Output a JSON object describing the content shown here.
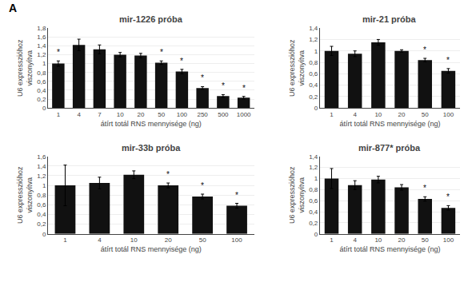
{
  "panel_label": "A",
  "chart_data": [
    {
      "type": "bar",
      "title": "mir-1226 próba",
      "categories": [
        "1",
        "4",
        "7",
        "10",
        "20",
        "50",
        "100",
        "250",
        "500",
        "1000"
      ],
      "values": [
        1.0,
        1.42,
        1.32,
        1.2,
        1.18,
        1.02,
        0.82,
        0.45,
        0.27,
        0.23
      ],
      "errors": [
        0.06,
        0.13,
        0.1,
        0.05,
        0.05,
        0.04,
        0.05,
        0.03,
        0.03,
        0.03
      ],
      "annotations": [
        {
          "category": "1",
          "text": "*"
        },
        {
          "category": "50",
          "text": "*"
        },
        {
          "category": "100",
          "text": "*"
        },
        {
          "category": "250",
          "text": "*"
        },
        {
          "category": "500",
          "text": "*"
        },
        {
          "category": "1000",
          "text": "*"
        }
      ],
      "color": "#111111",
      "ylim": [
        0,
        1.8
      ],
      "yticks": [
        0,
        {
          "value": 0.2,
          "label": "0,2"
        },
        {
          "value": 0.4,
          "label": "0,4"
        },
        {
          "value": 0.6,
          "label": "0,6"
        },
        {
          "value": 0.8,
          "label": "0,8"
        },
        1,
        {
          "value": 1.2,
          "label": "1,2"
        },
        {
          "value": 1.4,
          "label": "1,4"
        },
        {
          "value": 1.6,
          "label": "1,6"
        },
        {
          "value": 1.8,
          "label": "1,8"
        }
      ],
      "ylabel": "U6 expresszióhoz\nviszonyítva",
      "xlabel": "átírt totál RNS mennyisége (ng)",
      "grid": true
    },
    {
      "type": "bar",
      "title": "mir-21 próba",
      "categories": [
        "1",
        "4",
        "10",
        "20",
        "50",
        "100"
      ],
      "values": [
        1.0,
        0.95,
        1.15,
        1.0,
        0.84,
        0.65
      ],
      "errors": [
        0.08,
        0.05,
        0.05,
        0.02,
        0.03,
        0.04
      ],
      "annotations": [
        {
          "category": "50",
          "text": "*"
        },
        {
          "category": "100",
          "text": "*"
        }
      ],
      "color": "#111111",
      "ylim": [
        0,
        1.4
      ],
      "yticks": [
        0,
        {
          "value": 0.2,
          "label": "0,2"
        },
        {
          "value": 0.4,
          "label": "0,4"
        },
        {
          "value": 0.6,
          "label": "0,6"
        },
        {
          "value": 0.8,
          "label": "0,8"
        },
        1,
        {
          "value": 1.2,
          "label": "1,2"
        },
        {
          "value": 1.4,
          "label": "1,4"
        }
      ],
      "ylabel": "U6 expresszióhoz\nviszonyítva",
      "xlabel": "átírt totál RNS mennyisége (ng)",
      "grid": true
    },
    {
      "type": "bar",
      "title": "mir-33b próba",
      "categories": [
        "1",
        "4",
        "10",
        "20",
        "50",
        "100"
      ],
      "values": [
        1.0,
        1.05,
        1.22,
        1.0,
        0.77,
        0.58
      ],
      "errors": [
        0.42,
        0.12,
        0.08,
        0.05,
        0.05,
        0.05
      ],
      "annotations": [
        {
          "category": "20",
          "text": "*"
        },
        {
          "category": "50",
          "text": "*"
        },
        {
          "category": "100",
          "text": "*"
        }
      ],
      "color": "#111111",
      "ylim": [
        0,
        1.6
      ],
      "yticks": [
        0,
        {
          "value": 0.2,
          "label": "0,2"
        },
        {
          "value": 0.4,
          "label": "0,4"
        },
        {
          "value": 0.6,
          "label": "0,6"
        },
        {
          "value": 0.8,
          "label": "0,8"
        },
        1,
        {
          "value": 1.2,
          "label": "1,2"
        },
        {
          "value": 1.4,
          "label": "1,4"
        },
        {
          "value": 1.6,
          "label": "1,6"
        }
      ],
      "ylabel": "U6 expresszióhoz\nviszonyítva",
      "xlabel": "átírt totál RNS mennyisége (ng)",
      "grid": true
    },
    {
      "type": "bar",
      "title": "mir-877* próba",
      "categories": [
        "1",
        "4",
        "10",
        "20",
        "50",
        "100"
      ],
      "values": [
        1.0,
        0.88,
        0.98,
        0.84,
        0.63,
        0.47
      ],
      "errors": [
        0.18,
        0.08,
        0.06,
        0.05,
        0.04,
        0.04
      ],
      "annotations": [
        {
          "category": "50",
          "text": "*"
        },
        {
          "category": "100",
          "text": "*"
        }
      ],
      "color": "#111111",
      "ylim": [
        0,
        1.4
      ],
      "yticks": [
        0,
        {
          "value": 0.2,
          "label": "0,2"
        },
        {
          "value": 0.4,
          "label": "0,4"
        },
        {
          "value": 0.6,
          "label": "0,6"
        },
        {
          "value": 0.8,
          "label": "0,8"
        },
        1,
        {
          "value": 1.2,
          "label": "1,2"
        },
        {
          "value": 1.4,
          "label": "1,4"
        }
      ],
      "ylabel": "U6 expresszióhoz\nviszonyítva",
      "xlabel": "átírt totál RNS mennyisége (ng)",
      "grid": true
    }
  ]
}
